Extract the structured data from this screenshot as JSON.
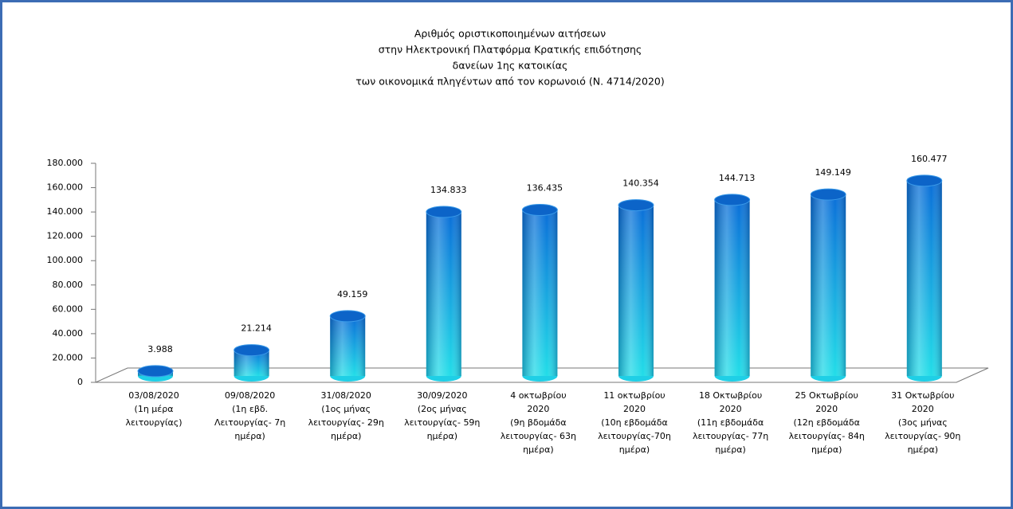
{
  "chart_data": {
    "type": "bar3d",
    "title": [
      "Αριθμός οριστικοποιημένων αιτήσεων",
      "στην Ηλεκτρονική Πλατφόρμα Κρατικής επιδότησης",
      "δανείων 1ης κατοικίας",
      "των οικονομικά πληγέντων από τον κορωνοιό (Ν. 4714/2020)"
    ],
    "categories": [
      [
        "03/08/2020",
        "(1η μέρα",
        "λειτουργίας)"
      ],
      [
        "09/08/2020",
        "(1η εβδ.",
        "Λειτουργίας- 7η",
        "ημέρα)"
      ],
      [
        "31/08/2020",
        "(1ος μήνας",
        "λειτουργίας- 29η",
        "ημέρα)"
      ],
      [
        "30/09/2020",
        "(2ος μήνας",
        "λειτουργίας- 59η",
        "ημέρα)"
      ],
      [
        "4 οκτωβρίου",
        "2020",
        "(9η βδομάδα",
        "λειτουργίας- 63η",
        "ημέρα)"
      ],
      [
        "11 οκτωβρίου",
        "2020",
        "(10η εβδομάδα",
        "λειτουργίας-70η",
        "ημέρα)"
      ],
      [
        "18 Οκτωβρίου",
        "2020",
        "(11η εβδομάδα",
        "λειτουργίας- 77η",
        "ημέρα)"
      ],
      [
        "25 Οκτωβρίου",
        "2020",
        "(12η εβδομάδα",
        "λειτουργίας- 84η",
        "ημέρα)"
      ],
      [
        "31 Οκτωβρίου",
        "2020",
        "(3ος μήνας",
        "λειτουργίας- 90η",
        "ημέρα)"
      ]
    ],
    "values": [
      3988,
      21214,
      49159,
      134833,
      136435,
      140354,
      144713,
      149149,
      160477
    ],
    "value_labels": [
      "3.988",
      "21.214",
      "49.159",
      "134.833",
      "136.435",
      "140.354",
      "144.713",
      "149.149",
      "160.477"
    ],
    "color": "#0b7ad8",
    "ylim": [
      0,
      180000
    ],
    "yticks": [
      0,
      {
        "value": 20000,
        "label": "20.000"
      },
      {
        "value": 40000,
        "label": "40.000"
      },
      {
        "value": 60000,
        "label": "60.000"
      },
      {
        "value": 80000,
        "label": "80.000"
      },
      {
        "value": 100000,
        "label": "100.000"
      },
      {
        "value": 120000,
        "label": "120.000"
      },
      {
        "value": 140000,
        "label": "140.000"
      },
      {
        "value": 160000,
        "label": "160.000"
      },
      {
        "value": 180000,
        "label": "180.000"
      }
    ]
  }
}
